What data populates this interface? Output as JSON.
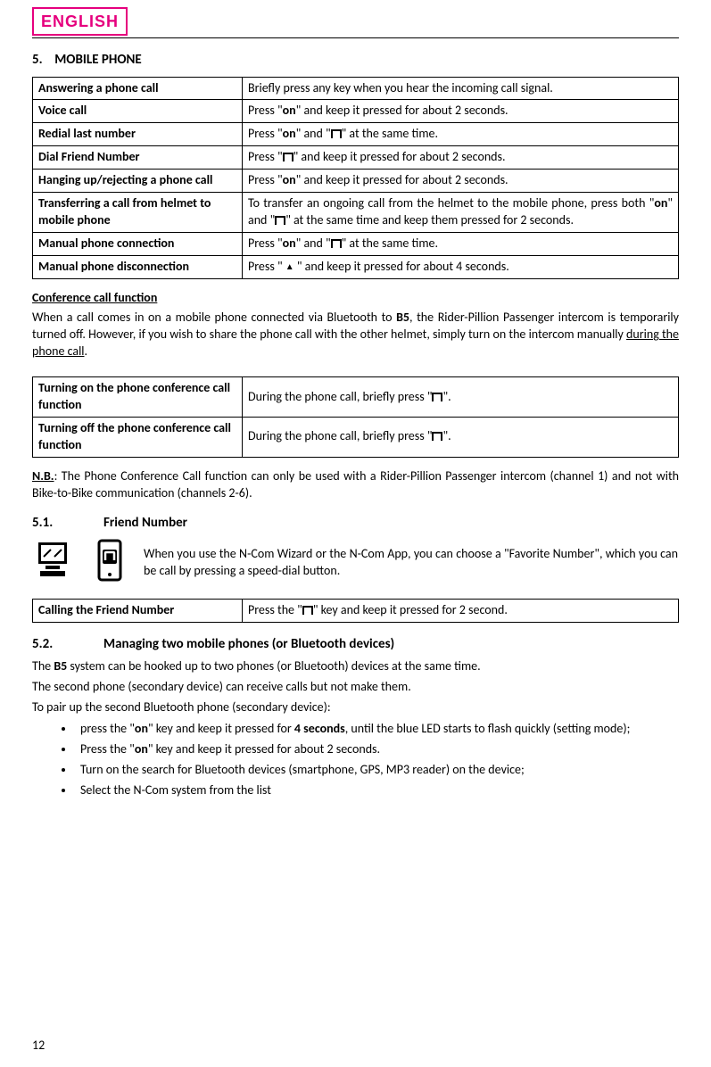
{
  "header": {
    "badge": "ENGLISH"
  },
  "section": {
    "num": "5.",
    "title": "MOBILE PHONE"
  },
  "table1": [
    {
      "label": "Answering a phone call",
      "desc_pre": "Briefly press any key when you hear the incoming call signal.",
      "type": "plain"
    },
    {
      "label": "Voice call",
      "desc_pre": "Press \"",
      "sym": "on",
      "desc_post": "\" and keep it pressed for about 2 seconds.",
      "type": "on"
    },
    {
      "label": "Redial last number",
      "type": "on_n",
      "p1": "Press \"",
      "s1": "on",
      "p2": "\" and \"",
      "s2": "N",
      "p3": "\" at the same time."
    },
    {
      "label": "Dial Friend Number",
      "type": "n",
      "p1": "Press \"",
      "p2": "\" and keep it pressed for about 2 seconds."
    },
    {
      "label": "Hanging up/rejecting a phone call",
      "type": "on",
      "desc_pre": "Press \"",
      "sym": "on",
      "desc_post": "\" and keep it pressed for about 2 seconds."
    },
    {
      "label": "Transferring a call from helmet to mobile phone",
      "type": "transfer",
      "p1": "To transfer an ongoing call from the helmet to the mobile phone, press both \"",
      "s1": "on",
      "p2": "\" and \"",
      "p3": "\" at the same time and keep them pressed for 2 seconds."
    },
    {
      "label": "Manual phone connection",
      "type": "on_n",
      "p1": "Press \"",
      "s1": "on",
      "p2": "\" and \"",
      "s2": "N",
      "p3": "\" at the same time."
    },
    {
      "label": "Manual phone disconnection",
      "type": "up",
      "p1": "Press \"",
      "p2": "\" and keep it pressed for about 4 seconds."
    }
  ],
  "conf": {
    "title": "Conference call function",
    "body_p1": "When a call comes in on a mobile phone connected via Bluetooth to ",
    "body_b1": "B5",
    "body_p2": ", the Rider-Pillion Passenger intercom is temporarily turned off. However, if you wish to share the phone call with the other helmet, simply turn on the intercom manually ",
    "body_u1": "during the phone call",
    "body_p3": "."
  },
  "table2": [
    {
      "label": "Turning on the phone conference call function",
      "p1": "During the phone call, briefly press \"",
      "p2": "\"."
    },
    {
      "label": "Turning off the phone conference call function",
      "p1": "During the phone call, briefly press \"",
      "p2": "\"."
    }
  ],
  "nb": {
    "label": "N.B.",
    "text": ": The Phone Conference Call function can only be used with a Rider-Pillion Passenger intercom (channel 1) and not with Bike-to-Bike communication (channels 2-6)."
  },
  "sub51": {
    "num": "5.1.",
    "title": "Friend Number"
  },
  "friend_info": "When you use the N-Com Wizard or the N-Com App, you can choose a \"Favorite Number\", which you can be call by pressing a speed-dial button.",
  "table3": [
    {
      "label": "Calling the Friend Number",
      "p1": "Press the \"",
      "p2": "\" key and keep it pressed for 2 second."
    }
  ],
  "sub52": {
    "num": "5.2.",
    "title": "Managing two mobile phones (or Bluetooth devices)"
  },
  "p52a_p1": "The ",
  "p52a_b1": "B5",
  "p52a_p2": " system can be hooked up to two phones (or Bluetooth) devices at the same time.",
  "p52b": "The second phone (secondary device) can receive calls but not make them.",
  "p52c": "To pair up the second Bluetooth phone (secondary device):",
  "bullets": [
    {
      "p1": "press the \"",
      "s1": "on",
      "p2": "\" key and keep it pressed for ",
      "b1": "4 seconds",
      "p3": ", until the blue LED starts to flash quickly (setting mode);"
    },
    {
      "p1": "Press the \"",
      "s1": "on",
      "p2": "\" key and keep it pressed for about 2 seconds."
    },
    {
      "plain": "Turn on the search for Bluetooth devices (smartphone, GPS, MP3 reader) on the device;"
    },
    {
      "plain": "Select the N-Com system from the list"
    }
  ],
  "page_num": "12"
}
